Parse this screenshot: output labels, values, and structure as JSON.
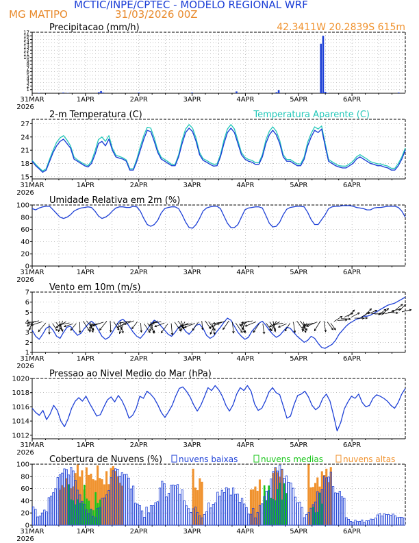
{
  "header": {
    "title": "MCTIC/INPE/CPTEC - MODELO REGIONAL WRF",
    "location": "MG MATIPO",
    "run": "31/03/2026 00Z",
    "coords": "42.3411W 20.2839S 615m"
  },
  "colors": {
    "blue": "#1c3fd6",
    "cyan": "#22c7b8",
    "green": "#19c519",
    "orange": "#f0922e",
    "grid": "#9a9a9a"
  },
  "time_axis": {
    "labels": [
      "31MAR",
      "1APR",
      "2APR",
      "3APR",
      "4APR",
      "5APR",
      "6APR"
    ],
    "year": "2026",
    "hours": 168
  },
  "chart_data": [
    {
      "id": "precip",
      "type": "bar",
      "title": "Precipitacao (mm/h)",
      "ylim": [
        0,
        17
      ],
      "yticks": [
        "1",
        "2",
        "3",
        "4",
        "5",
        "6",
        "7",
        "8",
        "9",
        "10",
        "11",
        "12",
        "13",
        "14",
        "15",
        "16",
        "17"
      ],
      "x_hours": [
        3,
        14,
        16,
        30,
        31,
        32,
        48,
        72,
        92,
        110,
        111,
        130,
        131,
        132,
        133,
        165
      ],
      "values": [
        0.1,
        0.2,
        0.1,
        0.3,
        0.6,
        0.2,
        0.2,
        0.2,
        0.5,
        0.3,
        0.9,
        13.8,
        16.0,
        0.4,
        0.1,
        0.2
      ]
    },
    {
      "id": "temp",
      "type": "line",
      "title": "2-m Temperatura (C)",
      "legend": "Temperatura Aparente (C)",
      "ylim": [
        14.5,
        28
      ],
      "yticks": [
        "15",
        "18",
        "21",
        "24",
        "27"
      ],
      "series": [
        {
          "name": "2-m Temperatura",
          "color": "blue",
          "values": [
            18.5,
            17.5,
            16.8,
            16.0,
            16.5,
            18.5,
            20.5,
            22.0,
            23.0,
            23.5,
            22.5,
            21.5,
            19.0,
            18.5,
            18.0,
            17.5,
            17.2,
            18.0,
            20.0,
            22.5,
            23.0,
            22.0,
            23.5,
            21.0,
            19.5,
            19.2,
            19.0,
            18.5,
            16.5,
            16.5,
            18.5,
            21.0,
            23.5,
            25.5,
            25.2,
            23.0,
            20.5,
            19.0,
            18.5,
            18.0,
            17.5,
            17.5,
            19.5,
            22.5,
            25.0,
            26.0,
            25.2,
            23.0,
            20.0,
            18.7,
            18.3,
            17.8,
            17.4,
            17.5,
            19.5,
            22.5,
            25.0,
            26.0,
            25.0,
            22.5,
            20.0,
            19.0,
            18.5,
            18.3,
            17.8,
            17.8,
            19.5,
            22.5,
            24.5,
            25.5,
            24.5,
            22.5,
            19.5,
            18.5,
            18.5,
            18.0,
            17.5,
            17.5,
            19.0,
            22.0,
            24.0,
            25.5,
            25.0,
            25.8,
            22.0,
            18.5,
            18.0,
            17.5,
            17.2,
            17.0,
            17.0,
            17.5,
            18.0,
            19.0,
            19.5,
            19.0,
            18.5,
            18.0,
            17.8,
            17.5,
            17.5,
            17.2,
            17.0,
            16.5,
            16.5,
            17.5,
            19.0,
            21.0
          ]
        },
        {
          "name": "Temperatura Aparente",
          "color": "cyan",
          "values": [
            18.7,
            17.8,
            17.0,
            16.3,
            16.8,
            19.0,
            21.0,
            22.8,
            23.8,
            24.3,
            23.3,
            22.0,
            19.5,
            18.8,
            18.3,
            17.8,
            17.5,
            18.5,
            20.8,
            23.4,
            24.0,
            23.0,
            24.3,
            21.5,
            19.9,
            19.6,
            19.3,
            18.8,
            16.8,
            16.8,
            19.0,
            21.8,
            24.3,
            26.2,
            26.0,
            23.8,
            21.0,
            19.4,
            18.9,
            18.4,
            17.8,
            17.8,
            20.0,
            23.3,
            25.8,
            26.8,
            26.0,
            23.7,
            20.5,
            19.1,
            18.7,
            18.2,
            17.8,
            17.9,
            20.0,
            23.3,
            25.8,
            26.8,
            25.8,
            23.2,
            20.5,
            19.4,
            18.9,
            18.7,
            18.2,
            18.2,
            20.0,
            23.3,
            25.3,
            26.3,
            25.3,
            23.2,
            20.0,
            18.9,
            18.9,
            18.4,
            17.9,
            17.9,
            19.5,
            22.8,
            24.8,
            26.3,
            25.8,
            26.5,
            22.6,
            18.9,
            18.4,
            17.9,
            17.5,
            17.4,
            17.4,
            17.9,
            18.5,
            19.5,
            20.0,
            19.5,
            19.0,
            18.4,
            18.2,
            17.9,
            17.9,
            17.6,
            17.4,
            16.9,
            16.9,
            18.0,
            19.5,
            21.5
          ]
        }
      ]
    },
    {
      "id": "rh",
      "type": "line",
      "title": "Umidade Relativa em 2m (%)",
      "ylim": [
        0,
        100
      ],
      "yticks": [
        "0",
        "20",
        "40",
        "60",
        "80",
        "100"
      ],
      "series": [
        {
          "name": "Umidade Relativa",
          "color": "blue",
          "values": [
            94,
            92,
            95,
            97,
            98,
            98,
            92,
            86,
            80,
            78,
            80,
            84,
            90,
            93,
            95,
            96,
            97,
            96,
            90,
            82,
            78,
            80,
            84,
            90,
            95,
            97,
            97,
            96,
            96,
            98,
            97,
            90,
            78,
            68,
            65,
            68,
            75,
            87,
            94,
            96,
            97,
            97,
            94,
            84,
            72,
            63,
            62,
            68,
            78,
            90,
            95,
            97,
            98,
            98,
            94,
            82,
            70,
            63,
            63,
            68,
            80,
            92,
            95,
            96,
            97,
            97,
            95,
            83,
            70,
            64,
            65,
            72,
            84,
            93,
            96,
            97,
            98,
            98,
            97,
            88,
            76,
            68,
            68,
            76,
            84,
            94,
            97,
            98,
            98,
            99,
            99,
            99,
            98,
            96,
            95,
            94,
            92,
            92,
            95,
            96,
            96,
            97,
            98,
            98,
            98,
            96,
            90,
            80
          ]
        }
      ]
    },
    {
      "id": "wind",
      "type": "line",
      "title": "Vento em 10m (m/s)",
      "ylim": [
        1,
        7
      ],
      "yticks": [
        "1",
        "2",
        "3",
        "4",
        "5",
        "6",
        "7"
      ],
      "series": [
        {
          "name": "Vento em 10m",
          "color": "blue",
          "values": [
            3.2,
            2.6,
            2.3,
            2.8,
            3.4,
            3.6,
            3.2,
            2.6,
            2.4,
            3.0,
            3.5,
            3.6,
            3.1,
            2.7,
            2.9,
            3.4,
            3.8,
            4.1,
            3.8,
            3.2,
            2.6,
            2.3,
            2.5,
            3.0,
            3.6,
            4.1,
            4.3,
            4.0,
            3.5,
            3.0,
            2.6,
            2.4,
            2.8,
            3.3,
            3.8,
            4.2,
            4.0,
            3.6,
            3.2,
            2.8,
            2.6,
            3.0,
            3.5,
            3.6,
            3.1,
            2.8,
            3.2,
            3.7,
            3.8,
            3.4,
            2.7,
            2.4,
            2.6,
            3.1,
            3.5,
            4.0,
            4.4,
            4.2,
            3.6,
            3.0,
            2.6,
            2.3,
            2.5,
            3.1,
            3.5,
            3.9,
            4.1,
            3.7,
            3.2,
            2.8,
            2.5,
            2.7,
            3.1,
            3.5,
            3.4,
            3.0,
            2.6,
            2.3,
            2.0,
            2.2,
            2.6,
            2.4,
            1.9,
            1.5,
            1.4,
            1.6,
            1.8,
            2.2,
            2.8,
            3.2,
            3.6,
            3.9,
            4.1,
            4.3,
            4.4,
            4.6,
            4.6,
            4.7,
            4.9,
            5.1,
            5.3,
            5.5,
            5.7,
            5.8,
            5.9,
            6.1,
            6.3,
            6.5
          ]
        }
      ]
    },
    {
      "id": "mslp",
      "type": "line",
      "title": "Pressao ao Nivel Medio do Mar (hPa)",
      "ylim": [
        1011.5,
        1020
      ],
      "yticks": [
        "1012",
        "1014",
        "1016",
        "1018",
        "1020"
      ],
      "series": [
        {
          "name": "Pressao",
          "color": "blue",
          "values": [
            1015.8,
            1015.2,
            1014.8,
            1015.5,
            1014.2,
            1015.0,
            1016.2,
            1015.5,
            1014.0,
            1013.2,
            1014.3,
            1015.8,
            1016.8,
            1017.3,
            1016.8,
            1017.5,
            1016.5,
            1015.6,
            1014.7,
            1014.9,
            1016.0,
            1017.0,
            1017.4,
            1016.7,
            1017.6,
            1016.9,
            1015.8,
            1014.4,
            1014.8,
            1015.8,
            1017.5,
            1017.2,
            1018.2,
            1017.8,
            1017.2,
            1016.3,
            1015.2,
            1014.5,
            1015.3,
            1016.2,
            1017.5,
            1018.6,
            1018.8,
            1018.2,
            1017.4,
            1016.3,
            1015.4,
            1016.2,
            1017.4,
            1018.7,
            1018.3,
            1019.0,
            1018.4,
            1017.5,
            1016.2,
            1015.4,
            1016.3,
            1017.8,
            1018.7,
            1018.3,
            1019.0,
            1018.2,
            1016.4,
            1015.5,
            1015.8,
            1016.8,
            1018.1,
            1018.7,
            1018.0,
            1017.7,
            1016.1,
            1014.4,
            1014.7,
            1016.3,
            1017.6,
            1017.8,
            1018.2,
            1017.4,
            1016.2,
            1015.6,
            1016.0,
            1017.2,
            1017.8,
            1016.8,
            1014.8,
            1012.6,
            1013.8,
            1015.7,
            1016.7,
            1017.5,
            1017.2,
            1017.8,
            1016.6,
            1016.0,
            1016.2,
            1017.2,
            1017.7,
            1017.5,
            1017.2,
            1016.8,
            1016.2,
            1015.8,
            1016.6,
            1017.8,
            1018.6
          ]
        }
      ]
    },
    {
      "id": "clouds",
      "type": "bar",
      "title": "Cobertura de Nuvens (%)",
      "legend": [
        "nuvens baixas",
        "nuvens medias",
        "nuvens altas"
      ],
      "ylim": [
        0,
        100
      ],
      "yticks": [
        "0",
        "20",
        "40",
        "60",
        "80",
        "100"
      ]
    }
  ]
}
